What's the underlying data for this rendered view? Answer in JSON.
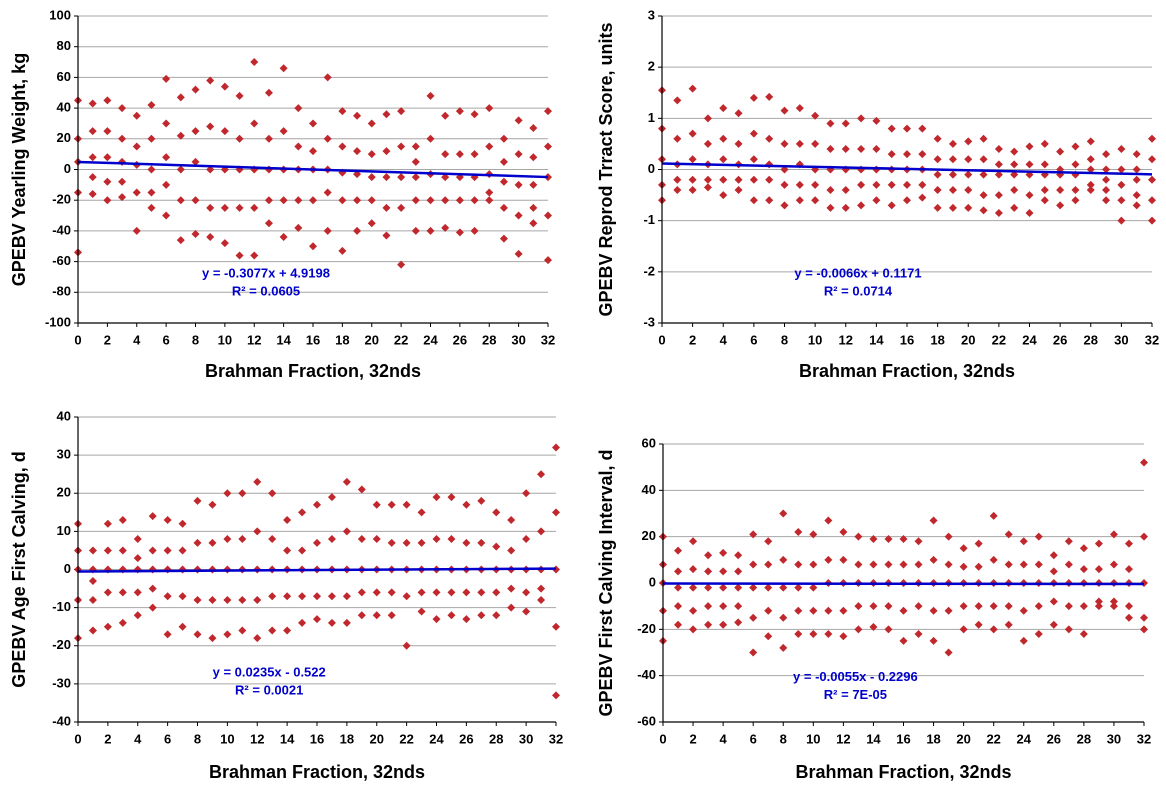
{
  "chart_data": [
    {
      "type": "scatter",
      "y_label": "GPEBV Yearling Weight, kg",
      "x_label": "Brahman Fraction, 32nds",
      "color": "#c0282d",
      "grid": true,
      "xlim": [
        0,
        32
      ],
      "ylim": [
        -100,
        100
      ],
      "xticks": [
        0,
        2,
        4,
        6,
        8,
        10,
        12,
        14,
        16,
        18,
        20,
        22,
        24,
        26,
        28,
        30,
        32
      ],
      "yticks": [
        -100,
        -80,
        -60,
        -40,
        -20,
        0,
        20,
        40,
        60,
        80,
        100
      ],
      "x": [
        0,
        1,
        2,
        3,
        4,
        5,
        6,
        7,
        8,
        9,
        10,
        11,
        12,
        13,
        14,
        15,
        16,
        17,
        18,
        19,
        20,
        21,
        22,
        23,
        24,
        25,
        26,
        27,
        28,
        29,
        30,
        31,
        32
      ],
      "values": [
        [
          45,
          20,
          5,
          -15,
          -54
        ],
        [
          43,
          25,
          8,
          -5,
          -16
        ],
        [
          45,
          25,
          8,
          -8,
          -20
        ],
        [
          40,
          20,
          5,
          -8,
          -18
        ],
        [
          35,
          15,
          3,
          -15,
          -40
        ],
        [
          42,
          20,
          0,
          -15,
          -25
        ],
        [
          59,
          30,
          8,
          -10,
          -30
        ],
        [
          47,
          22,
          0,
          -20,
          -46
        ],
        [
          52,
          25,
          5,
          -20,
          -42
        ],
        [
          58,
          28,
          0,
          -25,
          -44
        ],
        [
          54,
          25,
          0,
          -25,
          -48
        ],
        [
          48,
          20,
          0,
          -25,
          -56
        ],
        [
          70,
          30,
          0,
          -25,
          -56
        ],
        [
          50,
          20,
          0,
          -20,
          -35
        ],
        [
          66,
          25,
          0,
          -20,
          -44
        ],
        [
          40,
          15,
          0,
          -20,
          -38
        ],
        [
          30,
          12,
          0,
          -20,
          -50
        ],
        [
          60,
          20,
          0,
          -15,
          -40
        ],
        [
          38,
          15,
          -2,
          -20,
          -53
        ],
        [
          35,
          12,
          -3,
          -20,
          -40
        ],
        [
          30,
          10,
          -5,
          -20,
          -35
        ],
        [
          36,
          12,
          -5,
          -25,
          -43
        ],
        [
          38,
          15,
          -5,
          -25,
          -62
        ],
        [
          15,
          5,
          -5,
          -20,
          -40
        ],
        [
          48,
          20,
          -3,
          -20,
          -40
        ],
        [
          35,
          10,
          -5,
          -20,
          -38
        ],
        [
          38,
          10,
          -5,
          -20,
          -41
        ],
        [
          36,
          10,
          -5,
          -20,
          -40
        ],
        [
          40,
          15,
          -3,
          -15,
          -20
        ],
        [
          20,
          5,
          -8,
          -25,
          -45
        ],
        [
          32,
          10,
          -10,
          -30,
          -55
        ],
        [
          27,
          8,
          -10,
          -25,
          -35
        ],
        [
          38,
          15,
          -5,
          -30,
          -59
        ]
      ],
      "trendline": {
        "slope": -0.3077,
        "intercept": 4.9198,
        "color": "#0000cc",
        "label": "y = -0.3077x + 4.9198",
        "r2_label": "R² = 0.0605"
      }
    },
    {
      "type": "scatter",
      "y_label": "GPEBV Reprod Trract Score, units",
      "x_label": "Brahman Fraction, 32nds",
      "color": "#c0282d",
      "grid": true,
      "xlim": [
        0,
        32
      ],
      "ylim": [
        -3,
        3
      ],
      "xticks": [
        0,
        2,
        4,
        6,
        8,
        10,
        12,
        14,
        16,
        18,
        20,
        22,
        24,
        26,
        28,
        30,
        32
      ],
      "yticks": [
        -3,
        -2,
        -1,
        0,
        1,
        2,
        3
      ],
      "x": [
        0,
        1,
        2,
        3,
        4,
        5,
        6,
        7,
        8,
        9,
        10,
        11,
        12,
        13,
        14,
        15,
        16,
        17,
        18,
        19,
        20,
        21,
        22,
        23,
        24,
        25,
        26,
        27,
        28,
        29,
        30,
        31,
        32
      ],
      "values": [
        [
          1.55,
          0.8,
          0.2,
          -0.3,
          -0.6
        ],
        [
          1.35,
          0.6,
          0.1,
          -0.2,
          -0.4
        ],
        [
          1.58,
          0.7,
          0.2,
          -0.2,
          -0.4
        ],
        [
          1.0,
          0.5,
          0.1,
          -0.2,
          -0.35
        ],
        [
          1.2,
          0.6,
          0.2,
          -0.2,
          -0.5
        ],
        [
          1.1,
          0.5,
          0.1,
          -0.2,
          -0.4
        ],
        [
          1.4,
          0.7,
          0.2,
          -0.2,
          -0.6
        ],
        [
          1.42,
          0.6,
          0.1,
          -0.2,
          -0.6
        ],
        [
          1.15,
          0.5,
          0.0,
          -0.3,
          -0.7
        ],
        [
          1.2,
          0.5,
          0.1,
          -0.3,
          -0.6
        ],
        [
          1.05,
          0.5,
          0.0,
          -0.3,
          -0.6
        ],
        [
          0.9,
          0.4,
          0.0,
          -0.4,
          -0.75
        ],
        [
          0.9,
          0.4,
          0.0,
          -0.4,
          -0.75
        ],
        [
          1.0,
          0.4,
          0.0,
          -0.3,
          -0.7
        ],
        [
          0.95,
          0.4,
          0.0,
          -0.3,
          -0.6
        ],
        [
          0.8,
          0.3,
          0.0,
          -0.3,
          -0.7
        ],
        [
          0.8,
          0.3,
          0.0,
          -0.3,
          -0.6
        ],
        [
          0.8,
          0.3,
          0.0,
          -0.3,
          -0.55
        ],
        [
          0.6,
          0.2,
          -0.1,
          -0.4,
          -0.75
        ],
        [
          0.5,
          0.2,
          -0.1,
          -0.4,
          -0.75
        ],
        [
          0.55,
          0.2,
          -0.1,
          -0.4,
          -0.75
        ],
        [
          0.6,
          0.2,
          -0.1,
          -0.5,
          -0.8
        ],
        [
          0.4,
          0.1,
          -0.1,
          -0.5,
          -0.85
        ],
        [
          0.35,
          0.1,
          -0.1,
          -0.4,
          -0.75
        ],
        [
          0.45,
          0.1,
          -0.1,
          -0.5,
          -0.85
        ],
        [
          0.5,
          0.1,
          -0.1,
          -0.4,
          -0.6
        ],
        [
          0.35,
          0.0,
          -0.1,
          -0.4,
          -0.7
        ],
        [
          0.45,
          0.1,
          -0.1,
          -0.4,
          -0.6
        ],
        [
          0.55,
          0.2,
          0.0,
          -0.3,
          -0.4
        ],
        [
          0.3,
          0.0,
          -0.2,
          -0.4,
          -0.6
        ],
        [
          0.4,
          0.0,
          -0.3,
          -0.6,
          -1.0
        ],
        [
          0.3,
          0.0,
          -0.2,
          -0.5,
          -0.7
        ],
        [
          0.6,
          0.2,
          -0.2,
          -0.6,
          -1.0
        ]
      ],
      "trendline": {
        "slope": -0.0066,
        "intercept": 0.1171,
        "color": "#0000cc",
        "label": "y = -0.0066x + 0.1171",
        "r2_label": "R² = 0.0714"
      }
    },
    {
      "type": "scatter",
      "y_label": "GPEBV Age First Calving, d",
      "x_label": "Brahman Fraction, 32nds",
      "color": "#c0282d",
      "grid": true,
      "xlim": [
        0,
        32
      ],
      "ylim": [
        -40,
        40
      ],
      "xticks": [
        0,
        2,
        4,
        6,
        8,
        10,
        12,
        14,
        16,
        18,
        20,
        22,
        24,
        26,
        28,
        30,
        32
      ],
      "yticks": [
        -40,
        -30,
        -20,
        -10,
        0,
        10,
        20,
        30,
        40
      ],
      "x": [
        0,
        1,
        2,
        3,
        4,
        5,
        6,
        7,
        8,
        9,
        10,
        11,
        12,
        13,
        14,
        15,
        16,
        17,
        18,
        19,
        20,
        21,
        22,
        23,
        24,
        25,
        26,
        27,
        28,
        29,
        30,
        31,
        32
      ],
      "values": [
        [
          12,
          5,
          0,
          -8,
          -18
        ],
        [
          5,
          0,
          -3,
          -8,
          -16
        ],
        [
          12,
          5,
          0,
          -6,
          -15
        ],
        [
          13,
          5,
          0,
          -6,
          -14
        ],
        [
          8,
          3,
          0,
          -6,
          -12
        ],
        [
          14,
          5,
          0,
          -5,
          -10
        ],
        [
          13,
          5,
          0,
          -7,
          -17
        ],
        [
          12,
          5,
          0,
          -7,
          -15
        ],
        [
          18,
          7,
          0,
          -8,
          -17
        ],
        [
          17,
          7,
          0,
          -8,
          -18
        ],
        [
          20,
          8,
          0,
          -8,
          -17
        ],
        [
          20,
          8,
          0,
          -8,
          -16
        ],
        [
          23,
          10,
          0,
          -8,
          -18
        ],
        [
          20,
          8,
          0,
          -7,
          -16
        ],
        [
          13,
          5,
          0,
          -7,
          -16
        ],
        [
          15,
          5,
          0,
          -7,
          -14
        ],
        [
          17,
          7,
          0,
          -7,
          -13
        ],
        [
          19,
          8,
          0,
          -7,
          -14
        ],
        [
          23,
          10,
          0,
          -7,
          -14
        ],
        [
          21,
          8,
          0,
          -6,
          -12
        ],
        [
          17,
          8,
          0,
          -6,
          -12
        ],
        [
          17,
          7,
          0,
          -6,
          -12
        ],
        [
          17,
          7,
          0,
          -7,
          -20
        ],
        [
          15,
          7,
          0,
          -6,
          -11
        ],
        [
          19,
          8,
          0,
          -6,
          -13
        ],
        [
          19,
          8,
          0,
          -6,
          -12
        ],
        [
          17,
          7,
          0,
          -6,
          -13
        ],
        [
          18,
          7,
          0,
          -6,
          -12
        ],
        [
          15,
          6,
          0,
          -6,
          -12
        ],
        [
          13,
          5,
          0,
          -5,
          -10
        ],
        [
          20,
          8,
          0,
          -6,
          -11
        ],
        [
          25,
          10,
          0,
          -5,
          -8
        ],
        [
          32,
          15,
          0,
          -15,
          -33
        ]
      ],
      "trendline": {
        "slope": 0.0235,
        "intercept": -0.522,
        "color": "#0000cc",
        "label": "y = 0.0235x - 0.522",
        "r2_label": "R² = 0.0021"
      }
    },
    {
      "type": "scatter",
      "y_label": "GPEBV First Calving Interval, d",
      "x_label": "Brahman Fraction, 32nds",
      "color": "#c0282d",
      "grid": true,
      "xlim": [
        0,
        32
      ],
      "ylim": [
        -60,
        60
      ],
      "xticks": [
        0,
        2,
        4,
        6,
        8,
        10,
        12,
        14,
        16,
        18,
        20,
        22,
        24,
        26,
        28,
        30,
        32
      ],
      "yticks": [
        -60,
        -40,
        -20,
        0,
        20,
        40,
        60
      ],
      "x": [
        0,
        1,
        2,
        3,
        4,
        5,
        6,
        7,
        8,
        9,
        10,
        11,
        12,
        13,
        14,
        15,
        16,
        17,
        18,
        19,
        20,
        21,
        22,
        23,
        24,
        25,
        26,
        27,
        28,
        29,
        30,
        31,
        32
      ],
      "values": [
        [
          20,
          8,
          0,
          -12,
          -25
        ],
        [
          14,
          5,
          -2,
          -10,
          -18
        ],
        [
          18,
          6,
          -2,
          -12,
          -20
        ],
        [
          12,
          5,
          -2,
          -10,
          -18
        ],
        [
          13,
          5,
          -2,
          -10,
          -18
        ],
        [
          12,
          5,
          -2,
          -10,
          -17
        ],
        [
          21,
          8,
          -2,
          -15,
          -30
        ],
        [
          18,
          8,
          -2,
          -12,
          -23
        ],
        [
          30,
          10,
          -2,
          -15,
          -28
        ],
        [
          22,
          8,
          -2,
          -12,
          -22
        ],
        [
          21,
          8,
          -2,
          -12,
          -22
        ],
        [
          27,
          10,
          0,
          -12,
          -22
        ],
        [
          22,
          10,
          0,
          -12,
          -23
        ],
        [
          20,
          8,
          0,
          -10,
          -20
        ],
        [
          19,
          8,
          0,
          -10,
          -19
        ],
        [
          19,
          8,
          0,
          -10,
          -20
        ],
        [
          19,
          8,
          0,
          -12,
          -25
        ],
        [
          18,
          8,
          0,
          -10,
          -22
        ],
        [
          27,
          10,
          0,
          -12,
          -25
        ],
        [
          20,
          8,
          0,
          -12,
          -30
        ],
        [
          15,
          7,
          0,
          -10,
          -20
        ],
        [
          17,
          7,
          0,
          -10,
          -18
        ],
        [
          29,
          10,
          0,
          -10,
          -20
        ],
        [
          21,
          8,
          0,
          -10,
          -18
        ],
        [
          18,
          8,
          0,
          -12,
          -25
        ],
        [
          20,
          8,
          0,
          -10,
          -22
        ],
        [
          12,
          5,
          0,
          -8,
          -18
        ],
        [
          18,
          8,
          0,
          -10,
          -20
        ],
        [
          15,
          6,
          0,
          -10,
          -22
        ],
        [
          17,
          6,
          0,
          -8,
          -10
        ],
        [
          21,
          8,
          0,
          -8,
          -10
        ],
        [
          17,
          6,
          0,
          -10,
          -15
        ],
        [
          52,
          20,
          0,
          -15,
          -20
        ]
      ],
      "trendline": {
        "slope": -0.0055,
        "intercept": -0.2296,
        "color": "#0000cc",
        "label": "y = -0.0055x - 0.2296",
        "r2_label": "R² = 7E-05"
      }
    }
  ]
}
